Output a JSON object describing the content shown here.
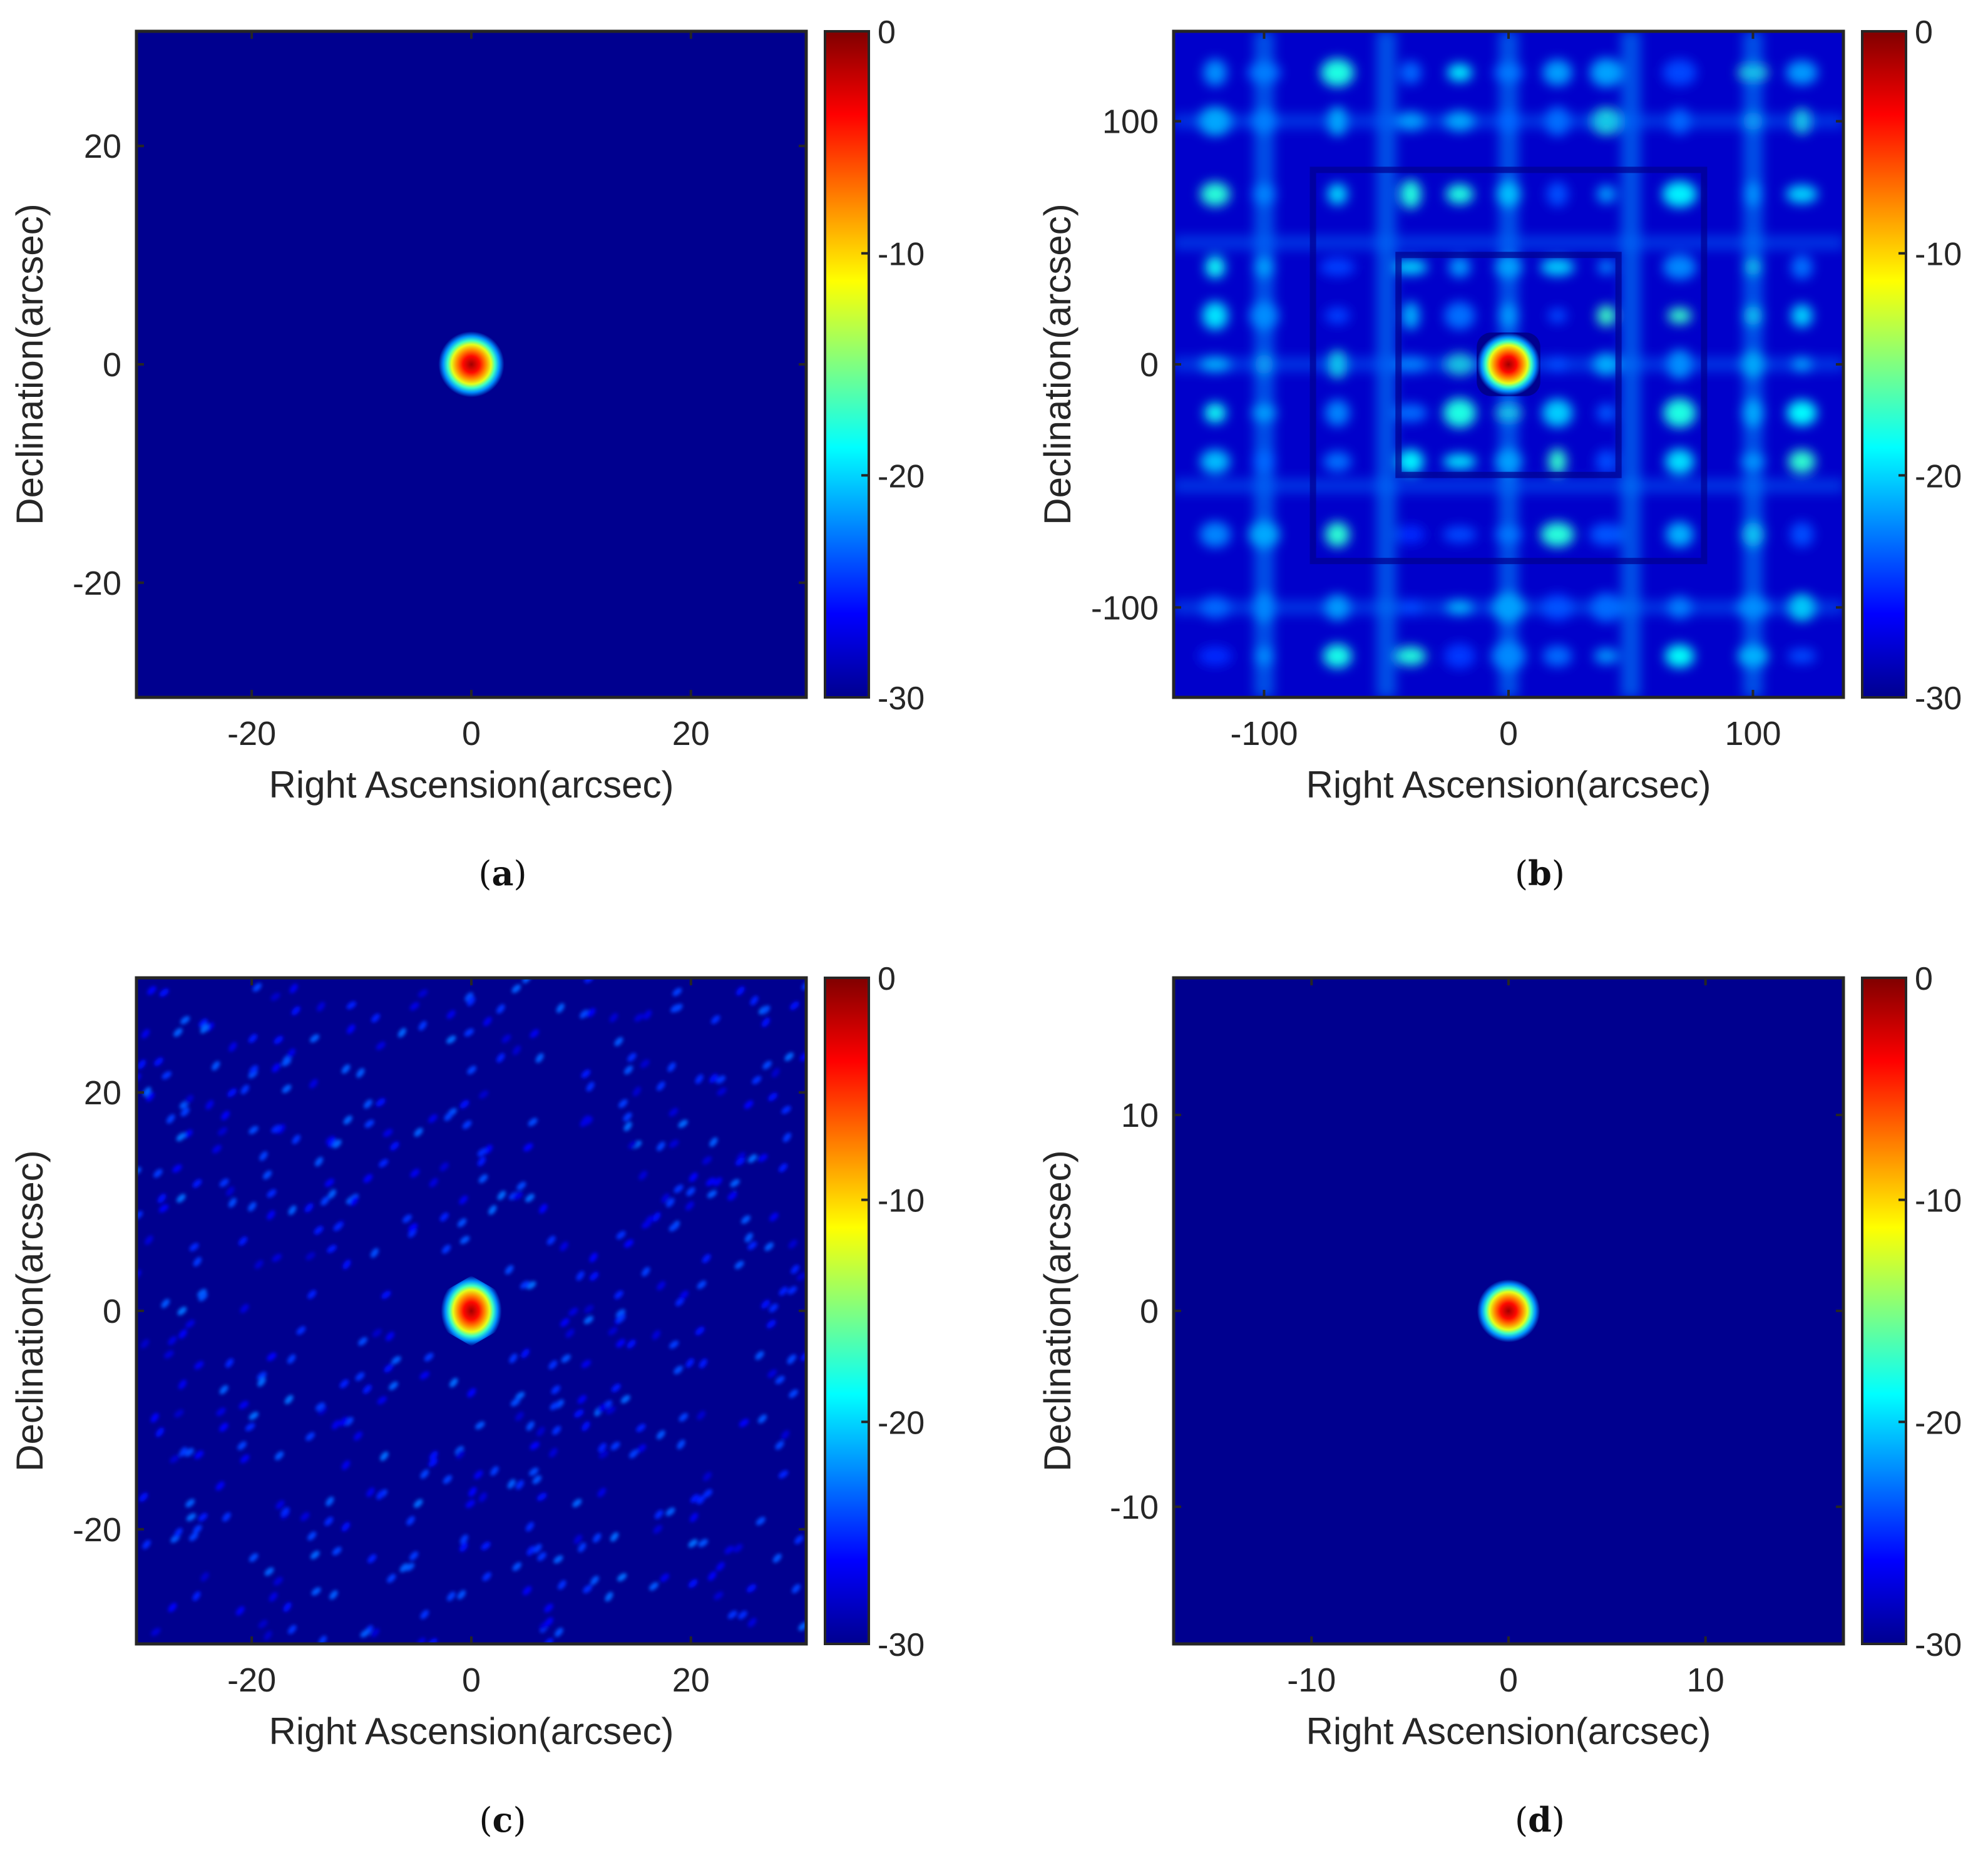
{
  "figure": {
    "background": "#ffffff"
  },
  "colormap": {
    "name": "jet",
    "stops": [
      "#00008f",
      "#0000ff",
      "#0080ff",
      "#00ffff",
      "#80ff80",
      "#ffff00",
      "#ff8000",
      "#ff0000",
      "#800000"
    ]
  },
  "chart_data": [
    {
      "id": "a",
      "type": "heatmap",
      "caption_letter": "a",
      "xlabel": "Right Ascension(arcsec)",
      "ylabel": "Declination(arcsec)",
      "xlim": [
        -30.5,
        30.5
      ],
      "ylim": [
        -30.5,
        30.5
      ],
      "xticks": [
        -20,
        0,
        20
      ],
      "yticks": [
        -20,
        0,
        20
      ],
      "colorbar": {
        "range": [
          -30,
          0
        ],
        "ticks": [
          0,
          -10,
          -20,
          -30
        ]
      },
      "background_level": -30,
      "main_lobe": {
        "center": [
          0,
          0
        ],
        "radius": 3,
        "peak": 0,
        "shape": "circle"
      },
      "sidelobes": "none"
    },
    {
      "id": "b",
      "type": "heatmap",
      "caption_letter": "b",
      "xlabel": "Right Ascension(arcsec)",
      "ylabel": "Declination(arcsec)",
      "xlim": [
        -137,
        137
      ],
      "ylim": [
        -137,
        137
      ],
      "xticks": [
        -100,
        0,
        100
      ],
      "yticks": [
        -100,
        0,
        100
      ],
      "colorbar": {
        "range": [
          -30,
          0
        ],
        "ticks": [
          0,
          -10,
          -20,
          -30
        ]
      },
      "background_level": -28,
      "main_lobe": {
        "center": [
          0,
          0
        ],
        "radius": 13,
        "peak": 0,
        "shape": "rounded-square"
      },
      "sidelobes": "strong symmetric grid pattern, levels about -25 to -17"
    },
    {
      "id": "c",
      "type": "heatmap",
      "caption_letter": "c",
      "xlabel": "Right Ascension(arcsec)",
      "ylabel": "Declination(arcsec)",
      "xlim": [
        -30.5,
        30.5
      ],
      "ylim": [
        -30.5,
        30.5
      ],
      "xticks": [
        -20,
        0,
        20
      ],
      "yticks": [
        -20,
        0,
        20
      ],
      "colorbar": {
        "range": [
          -30,
          0
        ],
        "ticks": [
          0,
          -10,
          -20,
          -30
        ]
      },
      "background_level": -30,
      "main_lobe": {
        "center": [
          0,
          0
        ],
        "radius": 3.2,
        "peak": 0,
        "shape": "hexagon"
      },
      "sidelobes": "weak diagonal fringe pattern, levels about -28 to -23"
    },
    {
      "id": "d",
      "type": "heatmap",
      "caption_letter": "d",
      "xlabel": "Right Ascension(arcsec)",
      "ylabel": "Declination(arcsec)",
      "xlim": [
        -17,
        17
      ],
      "ylim": [
        -17,
        17
      ],
      "xticks": [
        -10,
        0,
        10
      ],
      "yticks": [
        -10,
        0,
        10
      ],
      "colorbar": {
        "range": [
          -30,
          0
        ],
        "ticks": [
          0,
          -10,
          -20,
          -30
        ]
      },
      "background_level": -30,
      "main_lobe": {
        "center": [
          0,
          0
        ],
        "radius": 1.6,
        "peak": 0,
        "shape": "circle"
      },
      "sidelobes": "none"
    }
  ]
}
